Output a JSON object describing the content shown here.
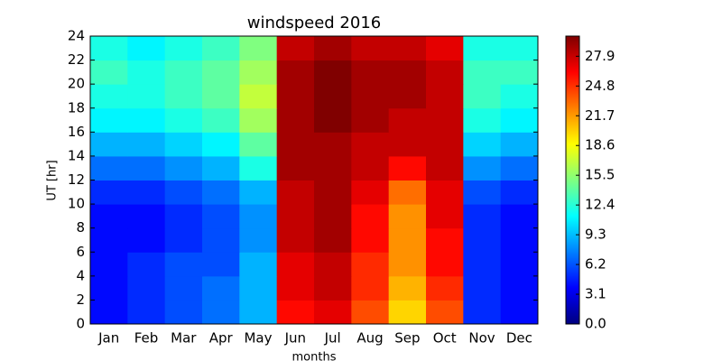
{
  "chart_data": {
    "type": "heatmap",
    "title": "windspeed 2016",
    "xlabel": "months",
    "ylabel": "UT [hr]",
    "categories": [
      "Jan",
      "Feb",
      "Mar",
      "Apr",
      "May",
      "Jun",
      "Jul",
      "Aug",
      "Sep",
      "Oct",
      "Nov",
      "Dec"
    ],
    "ylim": [
      0,
      24
    ],
    "yticks": [
      0,
      2,
      4,
      6,
      8,
      10,
      12,
      14,
      16,
      18,
      20,
      22,
      24
    ],
    "colormap": "jet",
    "clim": [
      0,
      30
    ],
    "cticks": [
      {
        "value": 0,
        "label": "0.0"
      },
      3.1,
      6.2,
      9.3,
      12.4,
      15.5,
      18.6,
      21.7,
      24.8,
      27.9
    ],
    "z": [
      [
        4,
        5,
        6,
        7,
        9,
        26,
        27,
        24,
        20,
        24,
        5,
        4
      ],
      [
        4,
        5,
        6,
        7,
        9,
        27,
        28,
        25,
        21,
        25,
        5,
        4
      ],
      [
        4,
        5,
        6,
        6,
        9,
        27,
        28,
        25,
        22,
        26,
        5,
        4
      ],
      [
        4,
        4,
        5,
        6,
        8,
        28,
        29,
        26,
        22,
        26,
        5,
        4
      ],
      [
        4,
        4,
        5,
        6,
        8,
        28,
        29,
        26,
        22,
        27,
        5,
        4
      ],
      [
        5,
        5,
        6,
        7,
        9,
        28,
        29,
        27,
        23,
        27,
        6,
        5
      ],
      [
        7,
        7,
        8,
        9,
        12,
        29,
        29,
        28,
        26,
        28,
        8,
        7
      ],
      [
        9,
        9,
        10,
        11,
        14,
        29,
        29,
        28,
        28,
        28,
        10,
        9
      ],
      [
        11,
        11,
        12,
        13,
        16,
        29,
        30,
        29,
        28,
        28,
        12,
        11
      ],
      [
        12,
        12,
        13,
        14,
        17,
        29,
        30,
        29,
        29,
        28,
        13,
        12
      ],
      [
        13,
        12,
        13,
        14,
        16,
        29,
        30,
        29,
        29,
        28,
        13,
        13
      ],
      [
        12,
        11,
        12,
        13,
        15,
        28,
        29,
        28,
        28,
        27,
        12,
        12
      ]
    ]
  }
}
